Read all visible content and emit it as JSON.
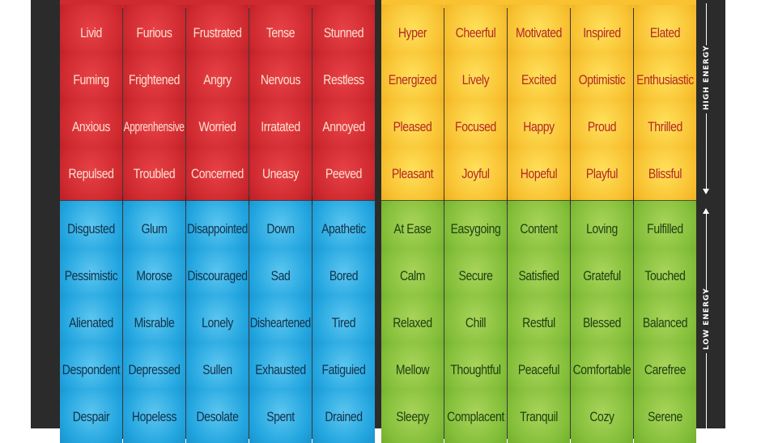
{
  "axes": {
    "high_energy_label": "HIGH ENERGY",
    "low_energy_label": "LOW ENERGY"
  },
  "colors": {
    "red": "#d0292f",
    "yellow": "#f8c232",
    "blue": "#22a5df",
    "green": "#84bf3a",
    "background": "#2b2b2b"
  },
  "quadrants": {
    "red": [
      [
        "Livid",
        "Furious",
        "Frustrated",
        "Tense",
        "Stunned"
      ],
      [
        "Fuming",
        "Frightened",
        "Angry",
        "Nervous",
        "Restless"
      ],
      [
        "Anxious",
        "Apprenhensive",
        "Worried",
        "Irratated",
        "Annoyed"
      ],
      [
        "Repulsed",
        "Troubled",
        "Concerned",
        "Uneasy",
        "Peeved"
      ]
    ],
    "yellow": [
      [
        "Hyper",
        "Cheerful",
        "Motivated",
        "Inspired",
        "Elated"
      ],
      [
        "Energized",
        "Lively",
        "Excited",
        "Optimistic",
        "Enthusiastic"
      ],
      [
        "Pleased",
        "Focused",
        "Happy",
        "Proud",
        "Thrilled"
      ],
      [
        "Pleasant",
        "Joyful",
        "Hopeful",
        "Playful",
        "Blissful"
      ]
    ],
    "blue": [
      [
        "Disgusted",
        "Glum",
        "Disappointed",
        "Down",
        "Apathetic"
      ],
      [
        "Pessimistic",
        "Morose",
        "Discouraged",
        "Sad",
        "Bored"
      ],
      [
        "Alienated",
        "Misrable",
        "Lonely",
        "Disheartened",
        "Tired"
      ],
      [
        "Despondent",
        "Depressed",
        "Sullen",
        "Exhausted",
        "Fatiguied"
      ],
      [
        "Despair",
        "Hopeless",
        "Desolate",
        "Spent",
        "Drained"
      ]
    ],
    "green": [
      [
        "At Ease",
        "Easygoing",
        "Content",
        "Loving",
        "Fulfilled"
      ],
      [
        "Calm",
        "Secure",
        "Satisfied",
        "Grateful",
        "Touched"
      ],
      [
        "Relaxed",
        "Chill",
        "Restful",
        "Blessed",
        "Balanced"
      ],
      [
        "Mellow",
        "Thoughtful",
        "Peaceful",
        "Comfortable",
        "Carefree"
      ],
      [
        "Sleepy",
        "Complacent",
        "Tranquil",
        "Cozy",
        "Serene"
      ]
    ]
  }
}
